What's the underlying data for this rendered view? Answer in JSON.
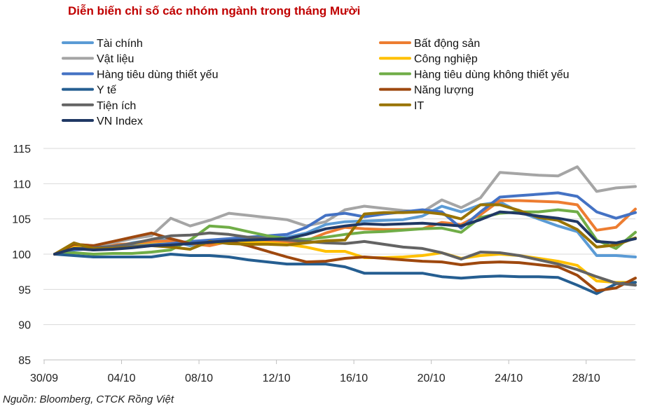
{
  "title": "Diễn biến chỉ số các nhóm ngành trong tháng Mười",
  "source": "Nguồn: Bloomberg, CTCK Rồng Việt",
  "chart_data": {
    "type": "line",
    "title": "Diễn biến chỉ số các nhóm ngành trong tháng Mười",
    "xlabel": "",
    "ylabel": "",
    "ylim": [
      85,
      115
    ],
    "yticks": [
      85,
      90,
      95,
      100,
      105,
      110,
      115
    ],
    "grid": true,
    "legend_position": "top",
    "x": [
      "30/09",
      "01/10",
      "02/10",
      "03/10",
      "04/10",
      "05/10",
      "06/10",
      "07/10",
      "08/10",
      "09/10",
      "10/10",
      "11/10",
      "12/10",
      "13/10",
      "14/10",
      "15/10",
      "16/10",
      "17/10",
      "18/10",
      "19/10",
      "20/10",
      "21/10",
      "22/10",
      "23/10",
      "24/10",
      "25/10",
      "26/10",
      "27/10",
      "28/10",
      "29/10",
      "30/10"
    ],
    "xticks": [
      "30/09",
      "04/10",
      "08/10",
      "12/10",
      "16/10",
      "20/10",
      "24/10",
      "28/10"
    ],
    "series": [
      {
        "name": "Tài chính",
        "color": "#5b9bd5",
        "values": [
          100,
          101.0,
          100.6,
          101.0,
          101.6,
          102.0,
          102.0,
          101.2,
          101.8,
          102.2,
          102.2,
          102.2,
          102.4,
          103.0,
          104.2,
          104.6,
          104.7,
          104.8,
          104.9,
          105.4,
          106.8,
          106.0,
          107.0,
          107.4,
          106.0,
          105.0,
          104.0,
          103.2,
          99.8,
          99.8,
          99.6
        ]
      },
      {
        "name": "Bất động sản",
        "color": "#ed7d31",
        "values": [
          100,
          101.4,
          101.2,
          101.3,
          101.5,
          101.8,
          101.9,
          101.5,
          101.2,
          101.8,
          101.9,
          101.8,
          101.7,
          101.9,
          103.0,
          103.8,
          103.6,
          103.5,
          103.5,
          103.6,
          104.5,
          104.2,
          105.6,
          107.6,
          107.6,
          107.5,
          107.4,
          107.0,
          103.4,
          103.8,
          106.4
        ]
      },
      {
        "name": "Vật liệu",
        "color": "#a5a5a5",
        "values": [
          100,
          101.2,
          101.0,
          101.6,
          102.2,
          102.6,
          105.1,
          104.0,
          104.8,
          105.8,
          105.5,
          105.2,
          104.9,
          104.0,
          104.6,
          106.3,
          106.8,
          106.5,
          106.2,
          106.0,
          107.7,
          106.6,
          108.0,
          111.6,
          111.4,
          111.2,
          111.1,
          112.4,
          108.9,
          109.4,
          109.6
        ]
      },
      {
        "name": "Công nghiệp",
        "color": "#ffc000",
        "values": [
          100,
          101.0,
          100.9,
          101.0,
          101.2,
          101.4,
          101.5,
          101.5,
          101.6,
          101.6,
          101.8,
          101.6,
          101.4,
          101.0,
          100.4,
          100.4,
          99.5,
          99.5,
          99.6,
          99.8,
          100.2,
          99.4,
          99.8,
          100.0,
          99.8,
          99.4,
          99.0,
          98.4,
          96.2,
          96.0,
          96.0
        ]
      },
      {
        "name": "Hàng tiêu dùng thiết yếu",
        "color": "#4472c4",
        "values": [
          100,
          100.6,
          100.8,
          100.9,
          101.1,
          101.3,
          101.5,
          101.8,
          102.0,
          102.2,
          102.4,
          102.6,
          102.8,
          103.8,
          105.5,
          105.8,
          105.3,
          105.7,
          106.0,
          106.3,
          106.0,
          103.7,
          106.0,
          108.1,
          108.3,
          108.5,
          108.7,
          108.2,
          106.0,
          105.1,
          105.9
        ]
      },
      {
        "name": "Hàng tiêu dùng không thiết yếu",
        "color": "#70ad47",
        "values": [
          100,
          100.2,
          100.0,
          100.1,
          100.1,
          100.3,
          100.6,
          102.0,
          104.0,
          103.8,
          103.2,
          102.6,
          102.2,
          102.1,
          102.4,
          102.8,
          103.1,
          103.2,
          103.4,
          103.6,
          103.7,
          103.1,
          105.2,
          105.8,
          106.0,
          106.0,
          106.3,
          106.0,
          102.0,
          100.8,
          103.1
        ]
      },
      {
        "name": "Y tế",
        "color": "#255e91",
        "values": [
          100,
          99.8,
          99.6,
          99.6,
          99.6,
          99.6,
          100.0,
          99.8,
          99.8,
          99.6,
          99.2,
          98.9,
          98.6,
          98.6,
          98.6,
          98.2,
          97.3,
          97.3,
          97.3,
          97.3,
          96.8,
          96.6,
          96.8,
          96.9,
          96.8,
          96.8,
          96.7,
          95.6,
          94.4,
          95.8,
          96.0
        ]
      },
      {
        "name": "Năng lượng",
        "color": "#9e480e",
        "values": [
          100,
          101.4,
          101.2,
          101.8,
          102.4,
          103.0,
          102.2,
          101.5,
          101.6,
          101.8,
          101.2,
          100.4,
          99.6,
          98.9,
          99.0,
          99.4,
          99.6,
          99.4,
          99.2,
          99.0,
          98.9,
          98.5,
          98.8,
          98.9,
          98.8,
          98.5,
          98.2,
          97.0,
          94.8,
          95.2,
          96.6
        ]
      },
      {
        "name": "Tiện ích",
        "color": "#636363",
        "values": [
          100,
          100.8,
          100.9,
          101.1,
          101.5,
          102.1,
          102.6,
          102.7,
          103.0,
          102.8,
          102.4,
          102.2,
          102.0,
          101.8,
          101.6,
          101.5,
          101.8,
          101.4,
          101.0,
          100.8,
          100.2,
          99.3,
          100.3,
          100.2,
          99.8,
          99.2,
          98.6,
          97.8,
          96.8,
          95.9,
          95.6
        ]
      },
      {
        "name": "IT",
        "color": "#997300",
        "values": [
          100,
          101.6,
          100.8,
          100.8,
          101.0,
          101.2,
          101.0,
          100.7,
          101.8,
          101.5,
          101.4,
          101.4,
          101.3,
          101.6,
          101.9,
          102.0,
          105.7,
          105.9,
          105.9,
          106.0,
          105.7,
          105.0,
          107.0,
          107.0,
          106.2,
          105.2,
          104.8,
          103.5,
          101.0,
          101.3,
          102.3
        ]
      },
      {
        "name": "VN Index",
        "color": "#203864",
        "values": [
          100,
          100.8,
          100.6,
          100.7,
          100.9,
          101.2,
          101.3,
          101.5,
          101.7,
          101.9,
          102.0,
          102.1,
          102.2,
          102.8,
          103.6,
          104.0,
          104.3,
          104.2,
          104.3,
          104.4,
          104.2,
          104.0,
          104.9,
          106.0,
          105.8,
          105.4,
          105.1,
          104.6,
          101.8,
          101.6,
          102.2
        ]
      }
    ]
  }
}
